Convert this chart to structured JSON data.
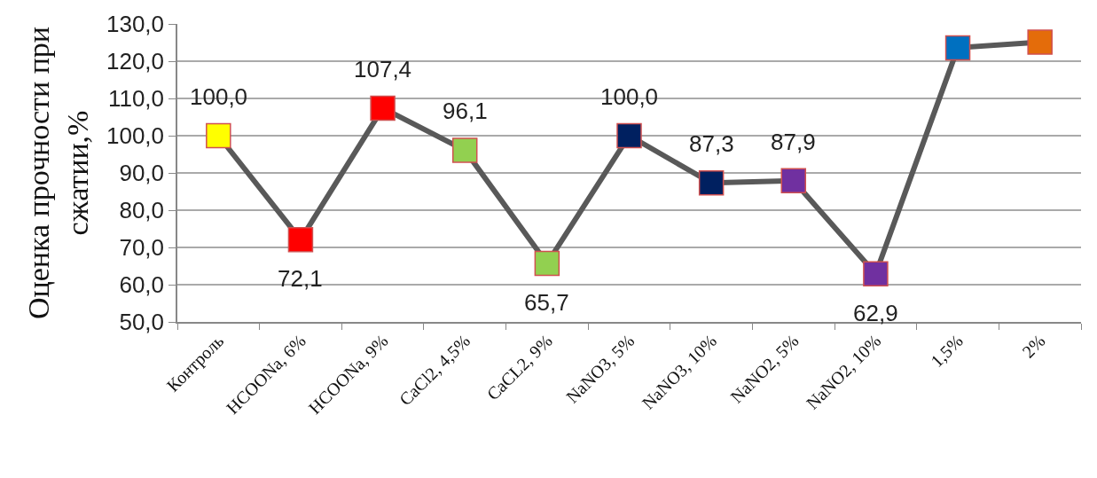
{
  "chart_data": {
    "type": "line",
    "ylabel": "Оценка прочности при\nсжатии,%",
    "categories": [
      "Контроль",
      "HCOONa, 6%",
      "HCOONa, 9%",
      "CaCl2, 4,5%",
      "CaCL2, 9%",
      "NaNO3, 5%",
      "NaNO3, 10%",
      "NaNO2, 5%",
      "NaNO2, 10%",
      "1,5%",
      "2%"
    ],
    "series": [
      {
        "color": "#595959",
        "colors": [
          "#ffff00",
          "#ff0000",
          "#ff0000",
          "#92d050",
          "#92d050",
          "#002060",
          "#002060",
          "#7030a0",
          "#7030a0",
          "#0070c0",
          "#e46c0a"
        ],
        "values": [
          100.0,
          72.1,
          107.4,
          96.1,
          65.7,
          100.0,
          87.3,
          87.9,
          62.9,
          123.6,
          125.1
        ],
        "value_labels": [
          "100,0",
          "72,1",
          "107,4",
          "96,1",
          "65,7",
          "100,0",
          "87,3",
          "87,9",
          "62,9",
          null,
          null
        ]
      }
    ],
    "ylim": [
      50,
      130
    ],
    "yticks": [
      {
        "value": 50,
        "label": "50,0"
      },
      {
        "value": 60,
        "label": "60,0"
      },
      {
        "value": 70,
        "label": "70,0"
      },
      {
        "value": 80,
        "label": "80,0"
      },
      {
        "value": 90,
        "label": "90,0"
      },
      {
        "value": 100,
        "label": "100,0"
      },
      {
        "value": 110,
        "label": "110,0"
      },
      {
        "value": 120,
        "label": "120,0"
      },
      {
        "value": 130,
        "label": "130,0"
      }
    ],
    "grid": "y",
    "marker": "square",
    "line_style": "solid"
  }
}
